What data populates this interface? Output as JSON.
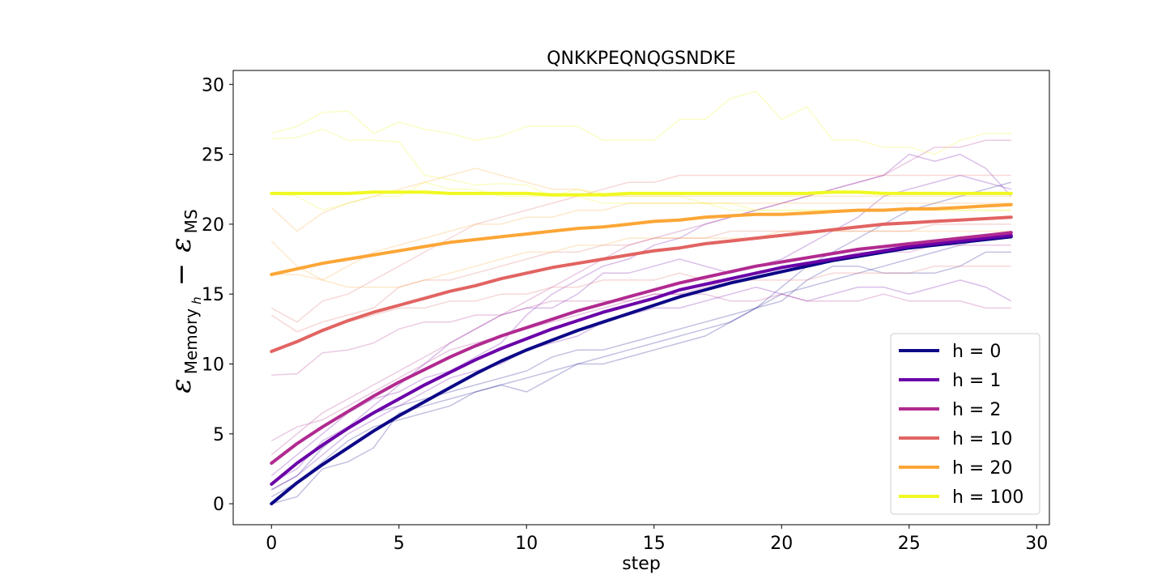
{
  "chart_data": {
    "type": "line",
    "title": "QNKKPEQNQGSNDKE",
    "xlabel": "step",
    "ylabel": {
      "symbol": "ε",
      "sub1": "Memory",
      "sub1_sub": "h",
      "minus": "−",
      "sub2": "MS"
    },
    "xlim": [
      -1.5,
      30.5
    ],
    "ylim": [
      -1.5,
      31.0
    ],
    "xticks": [
      0,
      5,
      10,
      15,
      20,
      25,
      30
    ],
    "yticks": [
      0,
      5,
      10,
      15,
      20,
      25,
      30
    ],
    "grid": false,
    "legend_position": "lower-right",
    "x": [
      0,
      1,
      2,
      3,
      4,
      5,
      6,
      7,
      8,
      9,
      10,
      11,
      12,
      13,
      14,
      15,
      16,
      17,
      18,
      19,
      20,
      21,
      22,
      23,
      24,
      25,
      26,
      27,
      28,
      29
    ],
    "series": [
      {
        "name": "h = 0",
        "color": "#0d0887",
        "values": [
          0.0,
          1.5,
          2.8,
          4.0,
          5.2,
          6.3,
          7.3,
          8.3,
          9.3,
          10.2,
          11.0,
          11.7,
          12.4,
          13.0,
          13.6,
          14.2,
          14.8,
          15.3,
          15.8,
          16.2,
          16.6,
          17.0,
          17.4,
          17.7,
          18.0,
          18.3,
          18.5,
          18.7,
          18.9,
          19.1
        ]
      },
      {
        "name": "h = 1",
        "color": "#6a00a8",
        "values": [
          1.4,
          2.9,
          4.2,
          5.4,
          6.5,
          7.5,
          8.5,
          9.4,
          10.3,
          11.1,
          11.8,
          12.5,
          13.1,
          13.7,
          14.2,
          14.7,
          15.3,
          15.7,
          16.1,
          16.5,
          16.9,
          17.2,
          17.5,
          17.8,
          18.1,
          18.4,
          18.6,
          18.8,
          19.0,
          19.2
        ]
      },
      {
        "name": "h = 2",
        "color": "#b12a90",
        "values": [
          2.9,
          4.3,
          5.5,
          6.6,
          7.7,
          8.7,
          9.6,
          10.5,
          11.3,
          12.0,
          12.6,
          13.2,
          13.8,
          14.3,
          14.8,
          15.3,
          15.8,
          16.2,
          16.6,
          17.0,
          17.3,
          17.6,
          17.9,
          18.2,
          18.4,
          18.6,
          18.8,
          19.0,
          19.2,
          19.4
        ]
      },
      {
        "name": "h = 10",
        "color": "#e16462",
        "values": [
          10.9,
          11.6,
          12.4,
          13.1,
          13.7,
          14.2,
          14.7,
          15.2,
          15.6,
          16.1,
          16.5,
          16.9,
          17.2,
          17.5,
          17.8,
          18.1,
          18.3,
          18.6,
          18.8,
          19.0,
          19.2,
          19.4,
          19.6,
          19.8,
          20.0,
          20.1,
          20.2,
          20.3,
          20.4,
          20.5
        ]
      },
      {
        "name": "h = 20",
        "color": "#fca636",
        "values": [
          16.4,
          16.8,
          17.2,
          17.5,
          17.8,
          18.1,
          18.4,
          18.7,
          18.9,
          19.1,
          19.3,
          19.5,
          19.7,
          19.8,
          20.0,
          20.2,
          20.3,
          20.5,
          20.6,
          20.7,
          20.7,
          20.8,
          20.9,
          21.0,
          21.0,
          21.1,
          21.1,
          21.2,
          21.3,
          21.4
        ]
      },
      {
        "name": "h = 100",
        "color": "#f0f921",
        "values": [
          22.2,
          22.2,
          22.2,
          22.2,
          22.3,
          22.3,
          22.3,
          22.2,
          22.2,
          22.2,
          22.2,
          22.1,
          22.1,
          22.1,
          22.2,
          22.2,
          22.2,
          22.2,
          22.2,
          22.2,
          22.2,
          22.2,
          22.3,
          22.3,
          22.2,
          22.2,
          22.2,
          22.2,
          22.2,
          22.2
        ]
      }
    ],
    "background_series": [
      {
        "color": "#0d0887",
        "values": [
          0.0,
          0.5,
          2.5,
          3.0,
          4.0,
          6.5,
          7.0,
          7.5,
          8.0,
          8.5,
          8.0,
          9.0,
          10.0,
          10.5,
          11.0,
          11.5,
          12.0,
          12.5,
          13.0,
          14.0,
          15.0,
          15.5,
          16.0,
          16.5,
          17.0,
          17.5,
          18.0,
          18.5,
          19.0,
          19.5
        ]
      },
      {
        "color": "#0d0887",
        "values": [
          1.0,
          2.0,
          4.0,
          5.5,
          6.5,
          7.0,
          7.5,
          8.0,
          8.5,
          9.0,
          9.5,
          10.5,
          11.0,
          11.0,
          11.5,
          12.0,
          12.5,
          13.0,
          13.5,
          14.0,
          14.5,
          16.0,
          17.0,
          17.0,
          16.5,
          16.5,
          16.5,
          17.0,
          18.0,
          18.0
        ]
      },
      {
        "color": "#0d0887",
        "values": [
          0.5,
          1.5,
          3.0,
          4.5,
          5.5,
          6.0,
          6.5,
          7.0,
          8.0,
          8.5,
          9.0,
          9.5,
          10.0,
          10.0,
          10.5,
          11.0,
          11.5,
          12.0,
          13.0,
          14.0,
          15.5,
          17.0,
          18.0,
          19.0,
          20.0,
          21.0,
          21.5,
          22.0,
          22.5,
          23.0
        ]
      },
      {
        "color": "#6a00a8",
        "values": [
          1.5,
          2.5,
          4.5,
          5.5,
          7.0,
          8.5,
          10.0,
          11.5,
          12.5,
          13.5,
          14.0,
          14.0,
          15.0,
          16.5,
          16.5,
          17.0,
          17.5,
          17.0,
          16.5,
          17.0,
          17.5,
          18.5,
          19.5,
          20.5,
          22.0,
          22.5,
          23.0,
          23.5,
          23.0,
          22.5
        ]
      },
      {
        "color": "#6a00a8",
        "values": [
          2.0,
          3.5,
          5.0,
          6.5,
          7.5,
          8.0,
          9.0,
          9.5,
          10.5,
          11.5,
          13.5,
          15.0,
          16.0,
          17.0,
          17.5,
          18.5,
          19.0,
          20.0,
          20.5,
          21.0,
          21.5,
          22.0,
          22.5,
          23.0,
          23.5,
          25.0,
          24.5,
          25.0,
          24.0,
          22.0
        ]
      },
      {
        "color": "#6a00a8",
        "values": [
          1.0,
          2.0,
          3.5,
          5.0,
          6.0,
          7.0,
          8.0,
          9.0,
          9.5,
          10.0,
          11.0,
          11.5,
          12.0,
          13.0,
          13.5,
          14.0,
          14.0,
          14.5,
          15.0,
          15.5,
          15.0,
          14.5,
          15.0,
          15.5,
          15.5,
          15.0,
          15.5,
          16.0,
          15.5,
          14.5
        ]
      },
      {
        "color": "#b12a90",
        "values": [
          3.5,
          5.0,
          6.5,
          7.5,
          8.5,
          9.5,
          10.5,
          11.5,
          12.5,
          13.5,
          14.5,
          15.5,
          16.5,
          17.5,
          18.5,
          19.0,
          19.5,
          20.0,
          20.5,
          21.0,
          21.5,
          22.0,
          22.5,
          23.0,
          23.5,
          24.5,
          25.5,
          25.5,
          26.0,
          26.0
        ]
      },
      {
        "color": "#b12a90",
        "values": [
          4.5,
          5.5,
          6.0,
          7.0,
          8.0,
          9.0,
          10.0,
          11.0,
          11.5,
          12.0,
          12.5,
          13.0,
          13.5,
          14.0,
          14.5,
          15.0,
          15.0,
          15.5,
          16.0,
          16.5,
          17.0,
          17.0,
          17.5,
          18.0,
          18.0,
          18.0,
          18.5,
          18.5,
          18.5,
          18.5
        ]
      },
      {
        "color": "#b12a90",
        "values": [
          9.2,
          9.3,
          10.8,
          11.0,
          11.5,
          12.5,
          13.0,
          13.0,
          13.5,
          13.5,
          14.0,
          14.5,
          14.5,
          14.5,
          14.5,
          15.0,
          15.0,
          15.0,
          14.5,
          14.5,
          15.0,
          14.5,
          14.5,
          14.5,
          15.0,
          14.5,
          14.5,
          14.5,
          14.0,
          14.0
        ]
      },
      {
        "color": "#e16462",
        "values": [
          13.5,
          12.3,
          13.0,
          13.5,
          14.0,
          15.5,
          16.0,
          16.0,
          16.5,
          17.0,
          17.5,
          18.0,
          18.0,
          18.5,
          18.5,
          19.0,
          19.0,
          19.0,
          19.5,
          19.5,
          19.5,
          19.5,
          19.5,
          19.5,
          19.5,
          19.5,
          20.0,
          20.0,
          20.0,
          20.0
        ]
      },
      {
        "color": "#e16462",
        "values": [
          11.0,
          11.5,
          12.5,
          13.0,
          13.5,
          14.0,
          14.0,
          14.5,
          14.5,
          15.0,
          15.0,
          15.5,
          15.5,
          16.0,
          16.0,
          16.0,
          16.5,
          16.0,
          16.0,
          16.0,
          16.0,
          16.0,
          16.5,
          16.5,
          16.5,
          16.5,
          17.0,
          17.0,
          17.0,
          17.0
        ]
      },
      {
        "color": "#e16462",
        "values": [
          14.0,
          13.0,
          14.5,
          15.0,
          16.0,
          17.0,
          18.0,
          19.0,
          20.0,
          20.5,
          21.0,
          21.5,
          22.0,
          22.5,
          23.0,
          23.0,
          23.5,
          23.5,
          23.5,
          23.5,
          23.5,
          23.5,
          23.5,
          23.5,
          23.5,
          23.5,
          23.5,
          23.5,
          23.5,
          23.5
        ]
      },
      {
        "color": "#fca636",
        "values": [
          18.8,
          17.0,
          16.0,
          17.0,
          18.0,
          18.5,
          19.0,
          19.5,
          20.0,
          20.0,
          20.5,
          20.5,
          21.0,
          21.0,
          21.5,
          21.5,
          21.5,
          21.5,
          21.5,
          21.5,
          21.5,
          21.5,
          21.5,
          21.5,
          21.5,
          21.5,
          21.5,
          21.5,
          21.5,
          21.5
        ]
      },
      {
        "color": "#fca636",
        "values": [
          21.2,
          19.5,
          20.8,
          21.5,
          22.0,
          22.5,
          23.0,
          23.5,
          24.0,
          23.5,
          23.0,
          22.5,
          22.5,
          22.0,
          22.0,
          22.0,
          22.0,
          22.0,
          22.0,
          22.0,
          22.0,
          22.0,
          22.0,
          22.0,
          22.0,
          22.0,
          22.0,
          22.0,
          22.0,
          22.0
        ]
      },
      {
        "color": "#fca636",
        "values": [
          16.4,
          16.4,
          16.0,
          15.5,
          15.5,
          15.5,
          16.0,
          16.5,
          17.0,
          17.5,
          18.0,
          18.0,
          18.5,
          18.5,
          19.0,
          19.0,
          19.0,
          19.0,
          19.0,
          19.0,
          19.5,
          19.5,
          19.5,
          19.5,
          19.5,
          19.5,
          19.5,
          19.5,
          19.5,
          19.5
        ]
      },
      {
        "color": "#f0f921",
        "values": [
          26.5,
          27.0,
          28.0,
          28.1,
          26.5,
          27.3,
          26.8,
          26.5,
          26.0,
          26.3,
          27.0,
          27.0,
          27.0,
          26.0,
          26.0,
          26.0,
          27.5,
          27.5,
          29.0,
          29.5,
          27.5,
          28.4,
          26.0,
          26.0,
          25.5,
          25.5,
          25.0,
          26.0,
          26.5,
          26.5
        ]
      },
      {
        "color": "#f0f921",
        "values": [
          26.1,
          26.2,
          26.8,
          26.0,
          26.0,
          25.9,
          23.5,
          23.2,
          22.8,
          22.9,
          22.8,
          22.0,
          22.5,
          22.2,
          22.0,
          22.0,
          22.0,
          21.5,
          21.5,
          21.0,
          21.0,
          21.0,
          21.0,
          21.0,
          21.0,
          21.0,
          21.0,
          21.0,
          21.0,
          21.0
        ]
      },
      {
        "color": "#f0f921",
        "values": [
          22.2,
          22.0,
          21.0,
          21.5,
          22.0,
          22.0,
          23.0,
          22.5,
          22.5,
          22.0,
          22.0,
          22.0,
          22.0,
          21.5,
          21.5,
          21.5,
          21.5,
          21.5,
          21.0,
          21.0,
          21.0,
          21.0,
          21.0,
          21.0,
          21.0,
          21.0,
          21.0,
          21.0,
          21.0,
          21.0
        ]
      }
    ]
  }
}
